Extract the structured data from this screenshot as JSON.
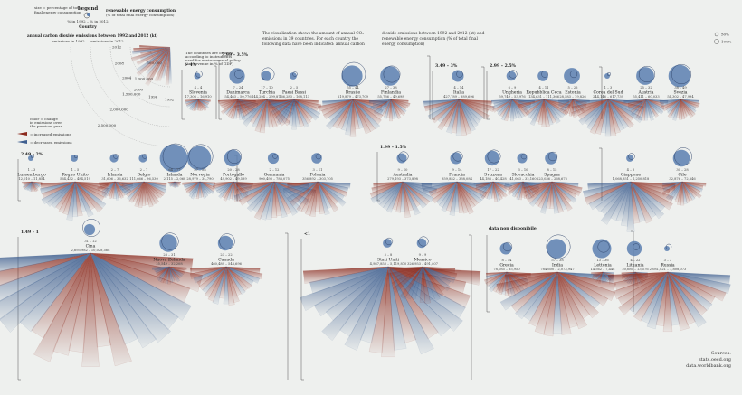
{
  "chart_data": {
    "type": "radial-fan",
    "intro": [
      "The visualization shows the amount of annual CO₂",
      "emissions in 39 countries. For each country the",
      "following data have been indicated: annual carbon"
    ],
    "intro2": [
      "dioxide emissions between 1992 and 2012 (kt) and",
      "renewable energy consumption (% of total final",
      "energy consumption)"
    ],
    "note": [
      "The countries are ordered",
      "according to instruments",
      "used for environmental policy",
      "(tax revenue in % of GDP)"
    ],
    "legend": {
      "title": "Legend",
      "renewable_title": [
        "renewable energy consumption",
        "(% of total final energy consumption)"
      ],
      "size_note": [
        "size = percentage of total",
        "final energy consumption"
      ],
      "year_note": "% in 1992 – % in 2012",
      "country": "Country",
      "emissions_title": "annual carbon dioxide emissions between 1992 and 2012 (kt)",
      "emissions_ends": "emissions in 1992 — emissions in 2012",
      "color_note": [
        "color = change",
        "in emissions over",
        "the previous year"
      ],
      "increased": "= increased emissions",
      "decreased": "= decreased emissions",
      "ring_labels": [
        "500,000",
        "1,000,000",
        "1,500,000",
        "2,000,000",
        "2,500,000"
      ],
      "year_labels": [
        "1992",
        "1996",
        "2000",
        "2004",
        "2008",
        "2012"
      ]
    },
    "scale_labels": [
      "50%",
      "100%"
    ],
    "colors": {
      "increased": "#8b2a1e",
      "decreased": "#3f5f90",
      "circle": "#5b7fb0"
    },
    "groups": [
      {
        "label": "> 4%"
      },
      {
        "label": "3.99 – 3.5%"
      },
      {
        "label": "3.49 – 3%"
      },
      {
        "label": "2.99 – 2.5%"
      },
      {
        "label": "2.49 – 2%"
      },
      {
        "label": "1.99 – 1.5%"
      },
      {
        "label": "1.49 – 1"
      },
      {
        "label": "<1"
      },
      {
        "label": "data non disponibile"
      }
    ],
    "countries": [
      {
        "name": "Slovenia",
        "range": "17,306 – 16,910",
        "pct": "4 – 4",
        "r1992": 4,
        "r2012": 4,
        "e": 17300
      },
      {
        "name": "Danimarca",
        "range": "54,463 – 50,776",
        "pct": "7 – 24",
        "r1992": 7,
        "r2012": 24,
        "e": 54000
      },
      {
        "name": "Turchia",
        "range": "144,294 – 299,871",
        "pct": "17 – 10",
        "r1992": 17,
        "r2012": 10,
        "e": 300000
      },
      {
        "name": "Paesi Bassi",
        "range": "166,283 – 168,113",
        "pct": "2 – 5",
        "r1992": 2,
        "r2012": 5,
        "e": 168000
      },
      {
        "name": "Brasile",
        "range": "219,879 – 473,709",
        "pct": "55 – 44",
        "r1992": 55,
        "r2012": 44,
        "e": 473000
      },
      {
        "name": "Finlandia",
        "range": "55,736 – 49,698",
        "pct": "27 – 38",
        "r1992": 27,
        "r2012": 38,
        "e": 56000
      },
      {
        "name": "Italia",
        "range": "427,789 – 389,696",
        "pct": "4 – 14",
        "r1992": 4,
        "r2012": 14,
        "e": 428000
      },
      {
        "name": "Ungheria",
        "range": "59,749 – 53,976",
        "pct": "6 – 9",
        "r1992": 6,
        "r2012": 9,
        "e": 60000
      },
      {
        "name": "Repubblica Ceca",
        "range": "134,631 – 111,366",
        "pct": "4 – 11",
        "r1992": 4,
        "r2012": 11,
        "e": 135000
      },
      {
        "name": "Estonia",
        "range": "28,583 – 19,826",
        "pct": "5 – 26",
        "r1992": 5,
        "r2012": 26,
        "e": 29000
      },
      {
        "name": "Corea del Sud",
        "range": "244,146 – 617,739",
        "pct": "1 – 3",
        "r1992": 1,
        "r2012": 3,
        "e": 618000
      },
      {
        "name": "Austria",
        "range": "55,411 – 60,033",
        "pct": "25 – 32",
        "r1992": 25,
        "r2012": 32,
        "e": 60000
      },
      {
        "name": "Svezia",
        "range": "54,302 – 47,994",
        "pct": "38 – 49",
        "r1992": 38,
        "r2012": 49,
        "e": 55000
      },
      {
        "name": "Lussemburgo",
        "range": "12,010 – 11,854",
        "pct": "1 – 3",
        "r1992": 1,
        "r2012": 3,
        "e": 12000
      },
      {
        "name": "Regno Unito",
        "range": "564,432 – 484,519",
        "pct": "1 – 5",
        "r1992": 1,
        "r2012": 5,
        "e": 565000
      },
      {
        "name": "Irlanda",
        "range": "31,606 – 36,632",
        "pct": "2 – 7",
        "r1992": 2,
        "r2012": 7,
        "e": 37000
      },
      {
        "name": "Belgio",
        "range": "111,666 – 96,530",
        "pct": "2 – 7",
        "r1992": 2,
        "r2012": 7,
        "e": 112000
      },
      {
        "name": "Islanda",
        "range": "2,115 – 2,068",
        "pct": "64 – 77",
        "r1992": 64,
        "r2012": 77,
        "e": 2100
      },
      {
        "name": "Norvegia",
        "range": "28,979 – 34,790",
        "pct": "57 – 58",
        "r1992": 57,
        "r2012": 58,
        "e": 35000
      },
      {
        "name": "Portogallo",
        "range": "49,902 – 49,539",
        "pct": "20 – 28",
        "r1992": 20,
        "r2012": 28,
        "e": 50000
      },
      {
        "name": "Germania",
        "range": "900,493 – 788,075",
        "pct": "2 – 12",
        "r1992": 2,
        "r2012": 12,
        "e": 900000
      },
      {
        "name": "Polonia",
        "range": "356,892 – 303,705",
        "pct": "3 – 11",
        "r1992": 3,
        "r2012": 11,
        "e": 357000
      },
      {
        "name": "Australia",
        "range": "279,193 – 373,898",
        "pct": "9 – 10",
        "r1992": 9,
        "r2012": 10,
        "e": 374000
      },
      {
        "name": "Francia",
        "range": "359,852 – 338,084",
        "pct": "9 – 14",
        "r1992": 9,
        "r2012": 14,
        "e": 360000
      },
      {
        "name": "Svizzera",
        "range": "44,186 – 40,428",
        "pct": "17 – 22",
        "r1992": 17,
        "r2012": 22,
        "e": 44000
      },
      {
        "name": "Slovacchia",
        "range": "41,063 – 32,160",
        "pct": "3 – 10",
        "r1992": 3,
        "r2012": 10,
        "e": 41000
      },
      {
        "name": "Spagna",
        "range": "223,036 – 268,675",
        "pct": "8 – 15",
        "r1992": 8,
        "r2012": 15,
        "e": 269000
      },
      {
        "name": "Giappone",
        "range": "1,068,351 – 1,250,818",
        "pct": "4 – 5",
        "r1992": 4,
        "r2012": 5,
        "e": 1250000
      },
      {
        "name": "Cile",
        "range": "32,876 – 72,846",
        "pct": "30 – 28",
        "r1992": 30,
        "r2012": 28,
        "e": 73000
      },
      {
        "name": "Cina",
        "range": "2,695,982 – 10,028,568",
        "pct": "31 – 12",
        "r1992": 31,
        "r2012": 12,
        "e": 10000000
      },
      {
        "name": "Nuova Zelanda",
        "range": "25,549 – 32,208",
        "pct": "28 – 31",
        "r1992": 28,
        "r2012": 31,
        "e": 32000
      },
      {
        "name": "Canada",
        "range": "460,489 – 548,696",
        "pct": "23 – 22",
        "r1992": 23,
        "r2012": 22,
        "e": 549000
      },
      {
        "name": "Stati Uniti",
        "range": "4,987,853 – 5,119,870",
        "pct": "5 – 8",
        "r1992": 5,
        "r2012": 8,
        "e": 5120000
      },
      {
        "name": "Messico",
        "range": "326,953 – 491,407",
        "pct": "9 – 9",
        "r1992": 9,
        "r2012": 9,
        "e": 491000
      },
      {
        "name": "Grecia",
        "range": "78,085 – 85,950",
        "pct": "8 – 14",
        "r1992": 8,
        "r2012": 14,
        "e": 86000
      },
      {
        "name": "India",
        "range": "784,600 – 2,073,947",
        "pct": "57 – 38",
        "r1992": 57,
        "r2012": 38,
        "e": 2070000
      },
      {
        "name": "Lettonia",
        "range": "14,562 – 7,448",
        "pct": "13 – 36",
        "r1992": 13,
        "r2012": 36,
        "e": 14000
      },
      {
        "name": "Lituania",
        "range": "20,680 – 13,576",
        "pct": "4 – 22",
        "r1992": 4,
        "r2012": 22,
        "e": 21000
      },
      {
        "name": "Russia",
        "range": "2,081,821 – 1,808,073",
        "pct": "3 – 3",
        "r1992": 3,
        "r2012": 3,
        "e": 2080000
      }
    ],
    "sources": [
      "Sources:",
      "stats.oecd.org",
      "data.worldbank.org"
    ]
  }
}
